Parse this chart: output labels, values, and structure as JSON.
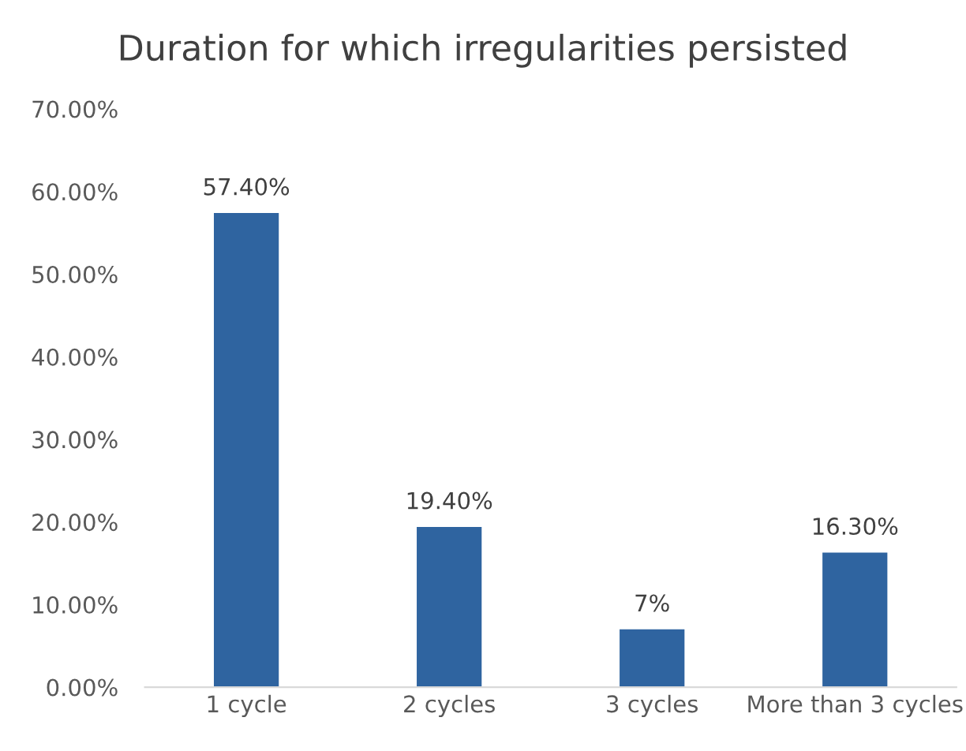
{
  "chart_data": {
    "type": "bar",
    "title": "Duration for which irregularities persisted",
    "categories": [
      "1 cycle",
      "2 cycles",
      "3 cycles",
      "More than 3 cycles"
    ],
    "values": [
      57.4,
      19.4,
      7,
      16.3
    ],
    "value_labels": [
      "57.40%",
      "19.40%",
      "7%",
      "16.30%"
    ],
    "color": "#2f64a0",
    "ylim": [
      0,
      70
    ],
    "yticks": [
      {
        "value": 0,
        "label": "0.00%"
      },
      {
        "value": 10,
        "label": "10.00%"
      },
      {
        "value": 20,
        "label": "20.00%"
      },
      {
        "value": 30,
        "label": "30.00%"
      },
      {
        "value": 40,
        "label": "40.00%"
      },
      {
        "value": 50,
        "label": "50.00%"
      },
      {
        "value": 60,
        "label": "60.00%"
      },
      {
        "value": 70,
        "label": "70.00%"
      }
    ],
    "grid": false,
    "legend": false
  }
}
